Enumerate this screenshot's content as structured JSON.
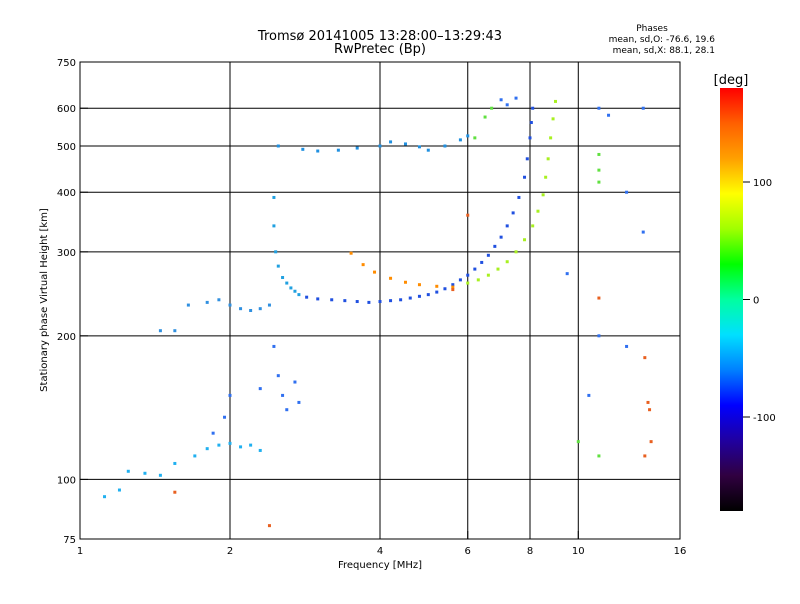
{
  "chart_data": {
    "type": "scatter",
    "title": "Tromsø 20141005 13:28:00–13:29:43",
    "subtitle": "RwPretec (Bp)",
    "xlabel": "Frequency [MHz]",
    "ylabel": "Stationary phase Virtual Height [km]",
    "x_scale": "log",
    "y_scale": "log",
    "xlim": [
      1,
      16
    ],
    "ylim": [
      75,
      750
    ],
    "x_ticks": [
      1,
      2,
      4,
      6,
      8,
      10,
      16
    ],
    "y_ticks": [
      75,
      100,
      200,
      300,
      400,
      500,
      600,
      750
    ],
    "grid": true,
    "grid_x": [
      2,
      4,
      6,
      8,
      10
    ],
    "grid_y": [
      100,
      200,
      300,
      400,
      500,
      600
    ],
    "colorbar": {
      "label": "[deg]",
      "ticks": [
        100,
        0,
        -100
      ],
      "range": [
        -180,
        180
      ],
      "colormap": [
        "#000000",
        "#300040",
        "#2000a0",
        "#0000ff",
        "#0080ff",
        "#00e0ff",
        "#00ffa0",
        "#00ff00",
        "#a0ff00",
        "#ffff00",
        "#ffa000",
        "#ff6000",
        "#ff0000"
      ]
    },
    "stats": {
      "heading": "Phases",
      "line1": "mean, sd,O: -76.6, 19.6",
      "line2": "mean, sd,X:  88.1, 28.1"
    },
    "series": [
      {
        "id": "f2-o-trace",
        "color": "#2050e0",
        "points": [
          [
            2.85,
            241
          ],
          [
            3.0,
            239
          ],
          [
            3.2,
            238
          ],
          [
            3.4,
            237
          ],
          [
            3.6,
            236
          ],
          [
            3.8,
            235
          ],
          [
            4.0,
            236
          ],
          [
            4.2,
            237
          ],
          [
            4.4,
            238
          ],
          [
            4.6,
            240
          ],
          [
            4.8,
            242
          ],
          [
            5.0,
            244
          ],
          [
            5.2,
            247
          ],
          [
            5.4,
            251
          ],
          [
            5.6,
            256
          ],
          [
            5.8,
            262
          ],
          [
            6.0,
            268
          ],
          [
            6.2,
            276
          ],
          [
            6.4,
            285
          ],
          [
            6.6,
            295
          ],
          [
            6.8,
            308
          ],
          [
            7.0,
            322
          ],
          [
            7.2,
            340
          ],
          [
            7.4,
            362
          ],
          [
            7.6,
            390
          ],
          [
            7.8,
            430
          ],
          [
            7.9,
            470
          ],
          [
            8.0,
            520
          ],
          [
            8.05,
            560
          ],
          [
            8.1,
            600
          ]
        ]
      },
      {
        "id": "f2-x-trace",
        "color": "#a8f020",
        "points": [
          [
            6.0,
            258
          ],
          [
            6.3,
            262
          ],
          [
            6.6,
            268
          ],
          [
            6.9,
            276
          ],
          [
            7.2,
            286
          ],
          [
            7.5,
            300
          ],
          [
            7.8,
            318
          ],
          [
            8.1,
            340
          ],
          [
            8.3,
            365
          ],
          [
            8.5,
            395
          ],
          [
            8.6,
            430
          ],
          [
            8.7,
            470
          ],
          [
            8.8,
            520
          ],
          [
            8.9,
            570
          ],
          [
            9.0,
            620
          ]
        ]
      },
      {
        "id": "x-low-branch",
        "color": "#ff8c00",
        "points": [
          [
            3.5,
            298
          ],
          [
            3.7,
            282
          ],
          [
            3.9,
            272
          ],
          [
            4.2,
            264
          ],
          [
            4.5,
            259
          ],
          [
            4.8,
            256
          ],
          [
            5.2,
            254
          ],
          [
            5.6,
            253
          ]
        ]
      },
      {
        "id": "f-region-band",
        "color": "#2090e0",
        "points": [
          [
            2.5,
            500
          ],
          [
            2.8,
            492
          ],
          [
            3.0,
            488
          ],
          [
            3.3,
            490
          ],
          [
            3.6,
            495
          ],
          [
            4.0,
            500
          ],
          [
            4.2,
            510
          ],
          [
            4.5,
            505
          ],
          [
            4.8,
            498
          ],
          [
            5.0,
            490
          ],
          [
            5.4,
            500
          ],
          [
            5.8,
            515
          ],
          [
            6.0,
            525
          ]
        ]
      },
      {
        "id": "cusp-spread",
        "color": "#20a0e0",
        "points": [
          [
            2.45,
            390
          ],
          [
            2.45,
            340
          ],
          [
            2.47,
            300
          ],
          [
            2.5,
            280
          ],
          [
            2.55,
            265
          ],
          [
            2.6,
            258
          ],
          [
            2.65,
            252
          ],
          [
            2.7,
            248
          ],
          [
            2.75,
            244
          ]
        ]
      },
      {
        "id": "e-layer-mid",
        "color": "#3090e0",
        "points": [
          [
            1.45,
            205
          ],
          [
            1.55,
            205
          ],
          [
            1.65,
            232
          ],
          [
            1.8,
            235
          ],
          [
            1.9,
            238
          ],
          [
            2.0,
            232
          ],
          [
            2.1,
            228
          ],
          [
            2.2,
            226
          ],
          [
            2.3,
            228
          ],
          [
            2.4,
            232
          ]
        ]
      },
      {
        "id": "e-layer-low",
        "color": "#20b0f0",
        "points": [
          [
            1.7,
            112
          ],
          [
            1.8,
            116
          ],
          [
            1.9,
            118
          ],
          [
            2.0,
            119
          ],
          [
            2.1,
            117
          ],
          [
            2.2,
            118
          ],
          [
            2.3,
            115
          ],
          [
            1.25,
            104
          ],
          [
            1.35,
            103
          ],
          [
            1.45,
            102
          ],
          [
            1.55,
            108
          ],
          [
            1.12,
            92
          ],
          [
            1.2,
            95
          ]
        ]
      },
      {
        "id": "scattered-mixed",
        "color": "#3070f0",
        "points": [
          [
            2.45,
            190
          ],
          [
            2.5,
            165
          ],
          [
            2.55,
            150
          ],
          [
            2.6,
            140
          ],
          [
            2.7,
            160
          ],
          [
            2.75,
            145
          ],
          [
            2.3,
            155
          ],
          [
            2.0,
            150
          ],
          [
            1.95,
            135
          ],
          [
            1.85,
            125
          ],
          [
            7.0,
            625
          ],
          [
            7.2,
            610
          ],
          [
            7.5,
            630
          ],
          [
            11.0,
            600
          ],
          [
            11.5,
            580
          ],
          [
            12.5,
            400
          ],
          [
            13.5,
            330
          ],
          [
            9.5,
            270
          ],
          [
            10.5,
            150
          ],
          [
            11.0,
            200
          ],
          [
            12.5,
            190
          ],
          [
            13.5,
            600
          ]
        ]
      },
      {
        "id": "scattered-warm",
        "color": "#e86020",
        "points": [
          [
            13.6,
            180
          ],
          [
            13.8,
            145
          ],
          [
            13.9,
            140
          ],
          [
            14.0,
            120
          ],
          [
            13.6,
            112
          ],
          [
            11.0,
            240
          ],
          [
            2.4,
            80
          ],
          [
            1.55,
            94
          ],
          [
            6.0,
            358
          ],
          [
            5.6,
            250
          ]
        ]
      },
      {
        "id": "scattered-green",
        "color": "#60e040",
        "points": [
          [
            6.7,
            600
          ],
          [
            6.5,
            575
          ],
          [
            6.2,
            520
          ],
          [
            11.0,
            480
          ],
          [
            11.0,
            445
          ],
          [
            11.0,
            420
          ],
          [
            11.0,
            112
          ],
          [
            10.0,
            120
          ]
        ]
      }
    ]
  }
}
